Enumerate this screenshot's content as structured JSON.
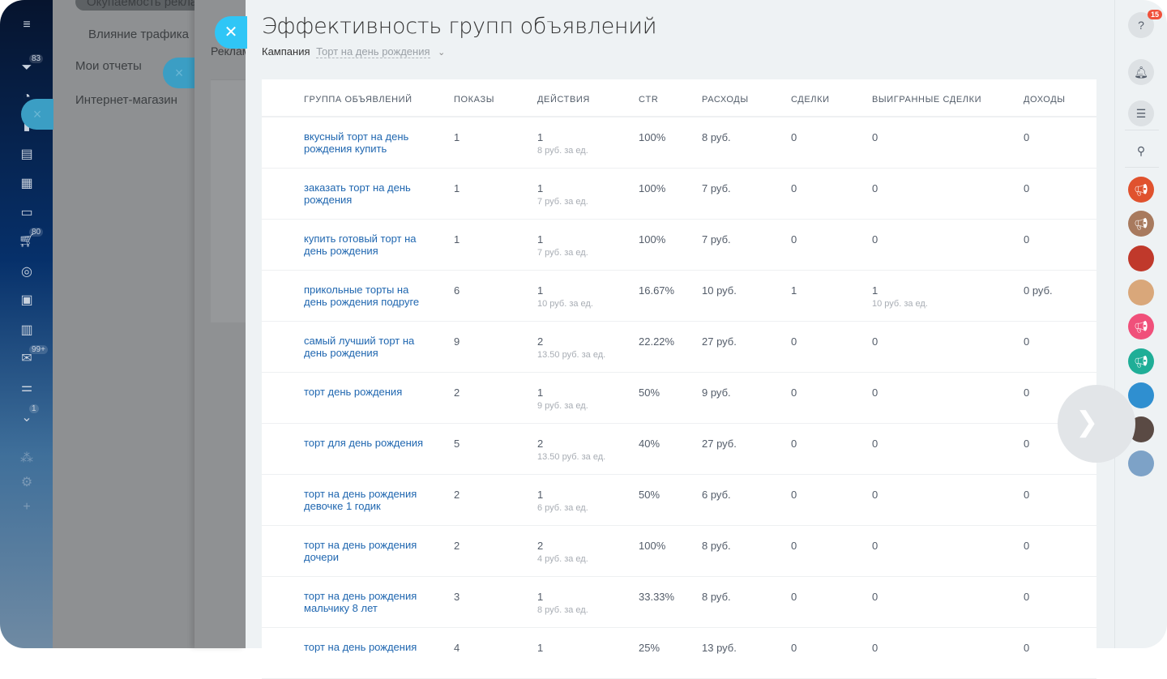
{
  "left_nav": {
    "items": [
      {
        "icon": "menu-icon"
      },
      {
        "icon": "filter-icon",
        "badge": "83"
      },
      {
        "icon": "clock-icon"
      },
      {
        "icon": "chart-icon"
      },
      {
        "icon": "cash-register-icon"
      },
      {
        "icon": "grid-icon"
      },
      {
        "icon": "window-icon"
      },
      {
        "icon": "cart-icon",
        "badge": "80"
      },
      {
        "icon": "target-icon"
      },
      {
        "icon": "robot-icon"
      },
      {
        "icon": "book-icon"
      },
      {
        "icon": "mail-icon",
        "badge": "99+"
      },
      {
        "icon": "sliders-icon"
      },
      {
        "icon": "chevron-circle-icon",
        "badge": "1"
      },
      {
        "icon": "network-icon"
      },
      {
        "icon": "gear-icon"
      },
      {
        "icon": "plus-icon"
      }
    ]
  },
  "menu": {
    "pill": "Окупаемость рекламы",
    "items": [
      "Влияние трафика",
      "Мои отчеты",
      "Интернет-магазин"
    ]
  },
  "background_panel": {
    "text": "Реклама"
  },
  "slider": {
    "title": "Эффективность групп объявлений",
    "campaign_label": "Кампания",
    "campaign_value": "Торт на день рождения",
    "columns": [
      "ГРУППА ОБЪЯВЛЕНИЙ",
      "ПОКАЗЫ",
      "ДЕЙСТВИЯ",
      "CTR",
      "РАСХОДЫ",
      "СДЕЛКИ",
      "ВЫИГРАННЫЕ СДЕЛКИ",
      "ДОХОДЫ"
    ],
    "rows": [
      {
        "name": "вкусный торт на день рождения купить",
        "shows": "1",
        "actions": "1",
        "actions_sub": "8 руб. за ед.",
        "ctr": "100%",
        "spend": "8 руб.",
        "deals": "0",
        "won": "0",
        "won_sub": "",
        "revenue": "0"
      },
      {
        "name": "заказать торт на день рождения",
        "shows": "1",
        "actions": "1",
        "actions_sub": "7 руб. за ед.",
        "ctr": "100%",
        "spend": "7 руб.",
        "deals": "0",
        "won": "0",
        "won_sub": "",
        "revenue": "0"
      },
      {
        "name": "купить готовый торт на день рождения",
        "shows": "1",
        "actions": "1",
        "actions_sub": "7 руб. за ед.",
        "ctr": "100%",
        "spend": "7 руб.",
        "deals": "0",
        "won": "0",
        "won_sub": "",
        "revenue": "0"
      },
      {
        "name": "прикольные торты на день рождения подруге",
        "shows": "6",
        "actions": "1",
        "actions_sub": "10 руб. за ед.",
        "ctr": "16.67%",
        "spend": "10 руб.",
        "deals": "1",
        "won": "1",
        "won_sub": "10 руб. за ед.",
        "revenue": "0 руб."
      },
      {
        "name": "самый лучший торт на день рождения",
        "shows": "9",
        "actions": "2",
        "actions_sub": "13.50 руб. за ед.",
        "ctr": "22.22%",
        "spend": "27 руб.",
        "deals": "0",
        "won": "0",
        "won_sub": "",
        "revenue": "0"
      },
      {
        "name": "торт день рождения",
        "shows": "2",
        "actions": "1",
        "actions_sub": "9 руб. за ед.",
        "ctr": "50%",
        "spend": "9 руб.",
        "deals": "0",
        "won": "0",
        "won_sub": "",
        "revenue": "0"
      },
      {
        "name": "торт для день рождения",
        "shows": "5",
        "actions": "2",
        "actions_sub": "13.50 руб. за ед.",
        "ctr": "40%",
        "spend": "27 руб.",
        "deals": "0",
        "won": "0",
        "won_sub": "",
        "revenue": "0"
      },
      {
        "name": "торт на день рождения девочке 1 годик",
        "shows": "2",
        "actions": "1",
        "actions_sub": "6 руб. за ед.",
        "ctr": "50%",
        "spend": "6 руб.",
        "deals": "0",
        "won": "0",
        "won_sub": "",
        "revenue": "0"
      },
      {
        "name": "торт на день рождения дочери",
        "shows": "2",
        "actions": "2",
        "actions_sub": "4 руб. за ед.",
        "ctr": "100%",
        "spend": "8 руб.",
        "deals": "0",
        "won": "0",
        "won_sub": "",
        "revenue": "0"
      },
      {
        "name": "торт на день рождения мальчику 8 лет",
        "shows": "3",
        "actions": "1",
        "actions_sub": "8 руб. за ед.",
        "ctr": "33.33%",
        "spend": "8 руб.",
        "deals": "0",
        "won": "0",
        "won_sub": "",
        "revenue": "0"
      },
      {
        "name": "торт на день рождения",
        "shows": "4",
        "actions": "1",
        "actions_sub": "",
        "ctr": "25%",
        "spend": "13 руб.",
        "deals": "0",
        "won": "0",
        "won_sub": "",
        "revenue": "0"
      }
    ]
  },
  "right_bar": {
    "help_badge": "15",
    "items": [
      {
        "icon": "help-icon"
      },
      {
        "icon": "bell-icon"
      },
      {
        "icon": "chat-icon"
      },
      {
        "icon": "search-icon"
      }
    ],
    "avatars": [
      {
        "color": "#e0522e"
      },
      {
        "color": "#a87a5e"
      },
      {
        "color": "#c0392b"
      },
      {
        "color": "#d9a77a"
      },
      {
        "color": "#f0507a"
      },
      {
        "color": "#1fae97"
      },
      {
        "color": "#2f8fd0"
      },
      {
        "color": "#5a4a44"
      },
      {
        "color": "#7da2c7"
      }
    ]
  },
  "colors": {
    "accent": "#2fc6f6",
    "link": "#2067b0"
  }
}
